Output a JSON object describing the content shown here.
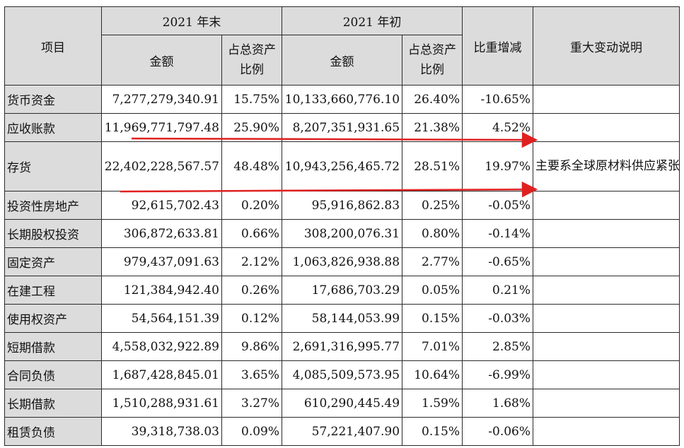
{
  "header": {
    "item": "项目",
    "end_year": "2021 年末",
    "start_year": "2021 年初",
    "amount": "金额",
    "ratio_line1": "占总资产",
    "ratio_line2": "比例",
    "change": "比重增减",
    "note": "重大变动说明"
  },
  "rows": [
    {
      "item": "货币资金",
      "end_amount": "7,277,279,340.91",
      "end_ratio": "15.75%",
      "start_amount": "10,133,660,776.10",
      "start_ratio": "26.40%",
      "change": "-10.65%"
    },
    {
      "item": "应收账款",
      "end_amount": "11,969,771,797.48",
      "end_ratio": "25.90%",
      "start_amount": "8,207,351,931.65",
      "start_ratio": "21.38%",
      "change": "4.52%"
    },
    {
      "item": "存货",
      "end_amount": "22,402,228,567.57",
      "end_ratio": "48.48%",
      "start_amount": "10,943,256,465.72",
      "start_ratio": "28.51%",
      "change": "19.97%"
    },
    {
      "item": "投资性房地产",
      "end_amount": "92,615,702.43",
      "end_ratio": "0.20%",
      "start_amount": "95,916,862.83",
      "start_ratio": "0.25%",
      "change": "-0.05%"
    },
    {
      "item": "长期股权投资",
      "end_amount": "306,872,633.81",
      "end_ratio": "0.66%",
      "start_amount": "308,200,076.31",
      "start_ratio": "0.80%",
      "change": "-0.14%"
    },
    {
      "item": "固定资产",
      "end_amount": "979,437,091.63",
      "end_ratio": "2.12%",
      "start_amount": "1,063,826,938.88",
      "start_ratio": "2.77%",
      "change": "-0.65%"
    },
    {
      "item": "在建工程",
      "end_amount": "121,384,942.40",
      "end_ratio": "0.26%",
      "start_amount": "17,686,703.29",
      "start_ratio": "0.05%",
      "change": "0.21%"
    },
    {
      "item": "使用权资产",
      "end_amount": "54,564,151.39",
      "end_ratio": "0.12%",
      "start_amount": "58,144,053.99",
      "start_ratio": "0.15%",
      "change": "-0.03%"
    },
    {
      "item": "短期借款",
      "end_amount": "4,558,032,922.89",
      "end_ratio": "9.86%",
      "start_amount": "2,691,316,995.77",
      "start_ratio": "7.01%",
      "change": "2.85%"
    },
    {
      "item": "合同负债",
      "end_amount": "1,687,428,845.01",
      "end_ratio": "3.65%",
      "start_amount": "4,085,509,573.95",
      "start_ratio": "10.64%",
      "change": "-6.99%"
    },
    {
      "item": "长期借款",
      "end_amount": "1,510,288,931.61",
      "end_ratio": "3.27%",
      "start_amount": "610,290,445.49",
      "start_ratio": "1.59%",
      "change": "1.68%"
    },
    {
      "item": "租赁负债",
      "end_amount": "39,318,738.03",
      "end_ratio": "0.09%",
      "start_amount": "57,221,407.90",
      "start_ratio": "0.15%",
      "change": "-0.06%"
    }
  ],
  "note_text": "主要系全球原材料供应紧张，公司增加备货所致",
  "annotation_color": "#e02020"
}
